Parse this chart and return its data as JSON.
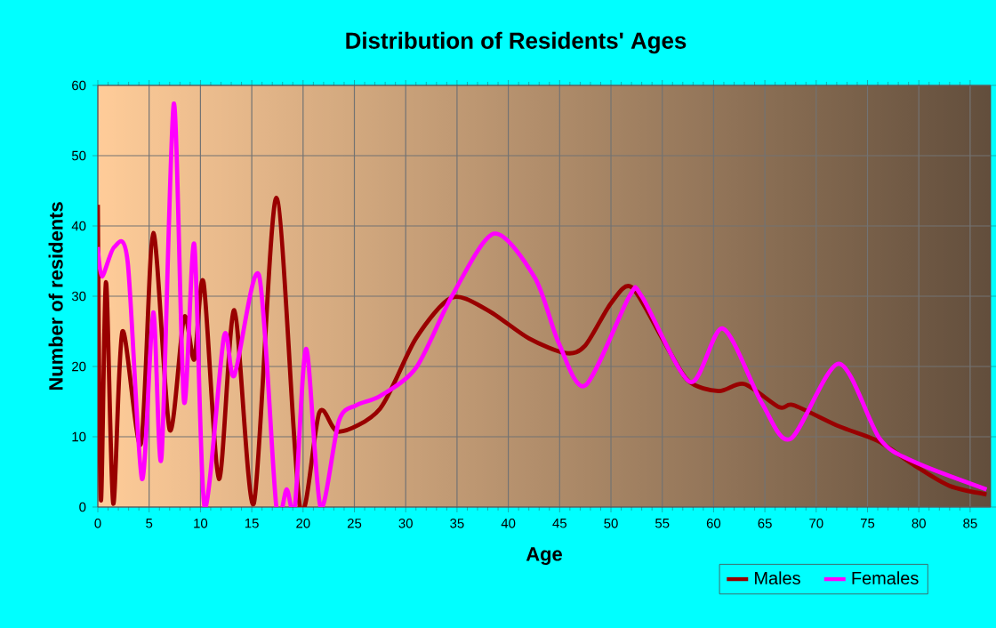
{
  "chart_data": {
    "type": "line",
    "title": "Distribution of Residents' Ages",
    "xlabel": "Age",
    "ylabel": "Number of residents",
    "xlim": [
      0,
      87
    ],
    "ylim": [
      0,
      60
    ],
    "xticks": [
      0,
      5,
      10,
      15,
      20,
      25,
      30,
      35,
      40,
      45,
      50,
      55,
      60,
      65,
      70,
      75,
      80,
      85
    ],
    "yticks": [
      0,
      10,
      20,
      30,
      40,
      50,
      60
    ],
    "grid": true,
    "legend": "bottom right",
    "marker": "none",
    "line_style": "solid",
    "series": [
      {
        "name": "Males",
        "color": "#990000",
        "x": [
          0,
          0.3,
          0.8,
          1.5,
          2.4,
          4.2,
          5.4,
          7,
          8.4,
          9.4,
          10.3,
          11.8,
          13.3,
          15.2,
          17.4,
          19.7,
          21.6,
          23.5,
          27.5,
          31,
          34.5,
          38,
          42,
          45.6,
          47.5,
          50,
          52,
          55,
          57.5,
          60.5,
          63,
          66.4,
          67.8,
          72.2,
          76,
          79.6,
          83,
          86.6
        ],
        "values": [
          43,
          1,
          32,
          0.5,
          25,
          9,
          39,
          11,
          27,
          21,
          32,
          4,
          28,
          0.5,
          44,
          0,
          13.5,
          10.7,
          14,
          24,
          29.8,
          28,
          24,
          21.9,
          23,
          29,
          31.3,
          24,
          18,
          16.5,
          17.5,
          14.2,
          14.5,
          11.5,
          9.4,
          5.9,
          3,
          1.8
        ]
      },
      {
        "name": "Females",
        "color": "#ff00ff",
        "x": [
          0,
          0.4,
          1.6,
          2.9,
          4.3,
          5.4,
          6.2,
          7.4,
          8.4,
          9.4,
          10.4,
          12.3,
          13.3,
          15.7,
          17.4,
          18.4,
          19.2,
          20.3,
          21.7,
          23.5,
          25.2,
          27.5,
          31,
          34.5,
          38.6,
          42.6,
          44.9,
          47.5,
          51.8,
          53,
          57.7,
          60.9,
          64.7,
          67.5,
          72.2,
          76.2,
          79.6,
          86.6
        ],
        "values": [
          37,
          32.8,
          37,
          35,
          4,
          27.7,
          7,
          57.4,
          15,
          37.4,
          0,
          24.3,
          18.7,
          33,
          0,
          2.5,
          0,
          22.5,
          0,
          12.3,
          14.5,
          15.8,
          19.8,
          30,
          38.9,
          32.6,
          23.4,
          17.3,
          30,
          30,
          17.8,
          25.4,
          14.8,
          9.7,
          20.4,
          9.7,
          6.4,
          2.5
        ]
      }
    ]
  }
}
